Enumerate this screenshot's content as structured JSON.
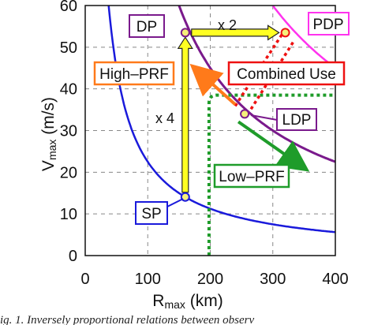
{
  "chart_data": {
    "type": "line",
    "xlabel": {
      "main": "R",
      "sub": "max",
      "unit": " (km)"
    },
    "ylabel": {
      "main": "V",
      "sub": "max",
      "unit": " (m/s)"
    },
    "xlim": [
      0,
      400
    ],
    "ylim": [
      0,
      60
    ],
    "xticks": [
      "0",
      "100",
      "200",
      "300",
      "400"
    ],
    "yticks": [
      "0",
      "10",
      "20",
      "30",
      "40",
      "50",
      "60"
    ],
    "grid": "dashed",
    "colors": {
      "sp_curve": "#1a1adb",
      "dp_curve": "#7a1a8c",
      "pdp_curve": "#ff33ee",
      "low_prf": "#1f9c2a",
      "high_prf": "#ff7a1a",
      "combined": "#ee1111",
      "arrow": "#ffff22",
      "point": "#f5f07a"
    },
    "curves": [
      {
        "id": "sp",
        "k": 2250
      },
      {
        "id": "dp",
        "k": 9000
      },
      {
        "id": "pdp",
        "k": 18000
      }
    ],
    "points": [
      {
        "label": "SP",
        "x": 160,
        "y": 14.06
      },
      {
        "label": "DP",
        "x": 160,
        "y": 53.5
      },
      {
        "label": "PDP",
        "x": 320,
        "y": 53.5
      },
      {
        "label": "LDP",
        "x": 255,
        "y": 34
      }
    ],
    "low_prf_region": {
      "x": 198,
      "y": 38.5
    },
    "annotations": {
      "high_prf": "High–PRF",
      "low_prf": "Low–PRF",
      "combined": "Combined Use",
      "x4": "x 4",
      "x2": "x 2"
    }
  },
  "caption": "ig. 1. Inversely proportional relations between observ"
}
